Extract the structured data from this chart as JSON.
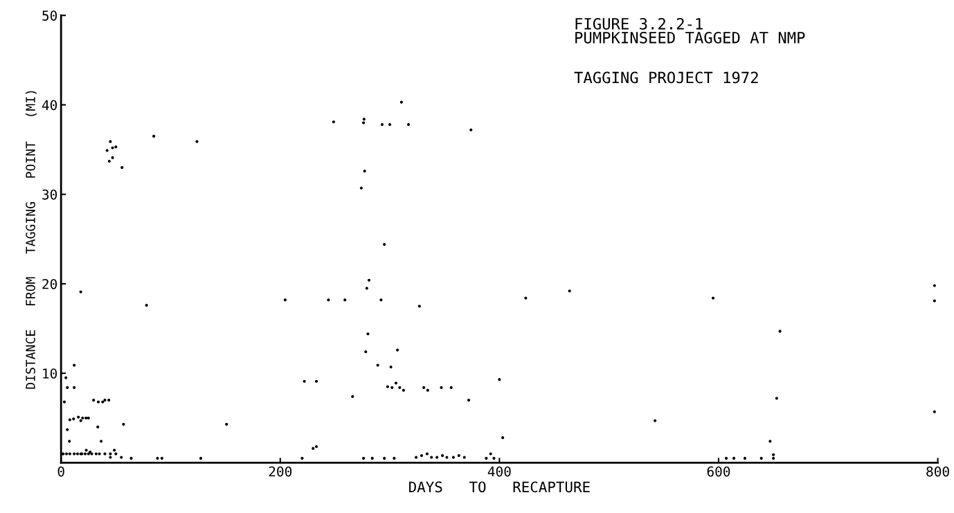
{
  "chart_data": {
    "type": "scatter",
    "title": "FIGURE 3.2.2-1\nPUMPKINSEED TAGGED AT NMP",
    "subtitle": "TAGGING PROJECT 1972",
    "xlabel": "DAYS   TO   RECAPTURE",
    "ylabel": "DISTANCE   FROM   TAGGING   POINT   (MI)",
    "xlim": [
      0,
      800
    ],
    "ylim": [
      0,
      50
    ],
    "xticks": [
      0,
      200,
      400,
      600,
      800
    ],
    "yticks": [
      10,
      20,
      30,
      40,
      50
    ],
    "grid": false,
    "marker": "circle",
    "series": [
      {
        "color": "#000000",
        "x": [
          1,
          2,
          5,
          8,
          12,
          15,
          18,
          22,
          25,
          28,
          32,
          35,
          40,
          45,
          50,
          7.6,
          5.7,
          8,
          3,
          5.7,
          4.4,
          12,
          12,
          11.4,
          15.8,
          18,
          19.6,
          22.7,
          25,
          18,
          19,
          23,
          26.5,
          29.7,
          34,
          38,
          40,
          43.6,
          33.5,
          36.6,
          48.6,
          45,
          55,
          64,
          42,
          47,
          45,
          44,
          47,
          50,
          55.6,
          57,
          78,
          84.6,
          88,
          92,
          127.5,
          124,
          151,
          204.5,
          222,
          233,
          220,
          230,
          233,
          248.7,
          244,
          259,
          266,
          276,
          276.5,
          274,
          277,
          278,
          279,
          281,
          280,
          276,
          284,
          289,
          292,
          295,
          293,
          300,
          295,
          304,
          301,
          298,
          302,
          305.6,
          309,
          312.5,
          307,
          310.6,
          317,
          324,
          329,
          334,
          338,
          343,
          348,
          352,
          358,
          363,
          368,
          327,
          331,
          334.6,
          347,
          356,
          372,
          374,
          388,
          392,
          395,
          400,
          403,
          424,
          464,
          542,
          595,
          607,
          614,
          624,
          639,
          647,
          650,
          650,
          653,
          656,
          797,
          797,
          797
        ],
        "values": [
          1,
          1,
          1,
          1,
          1,
          1,
          1,
          1,
          1,
          1,
          1,
          1,
          1,
          1,
          1,
          2.4,
          3.7,
          4.8,
          6.8,
          8.4,
          9.5,
          8.4,
          10.9,
          4.9,
          5.1,
          4.7,
          5,
          5,
          5,
          19.1,
          1,
          1.4,
          1.2,
          7,
          6.8,
          6.8,
          7,
          7,
          4,
          2.4,
          1.4,
          0.6,
          0.6,
          0.5,
          34.9,
          35.2,
          35.9,
          33.7,
          34.1,
          35.3,
          33,
          4.3,
          17.6,
          36.5,
          0.5,
          0.5,
          0.5,
          35.9,
          4.3,
          18.2,
          9.1,
          9.1,
          0.5,
          1.6,
          1.8,
          38.1,
          18.2,
          18.2,
          7.4,
          38,
          38.4,
          30.7,
          32.6,
          12.4,
          19.5,
          20.4,
          14.4,
          0.5,
          0.5,
          10.9,
          18.2,
          24.4,
          37.8,
          37.8,
          0.5,
          0.5,
          10.7,
          8.5,
          8.4,
          8.9,
          8.4,
          8.1,
          12.6,
          40.3,
          37.8,
          0.6,
          0.8,
          1,
          0.6,
          0.6,
          0.8,
          0.6,
          0.6,
          0.8,
          0.6,
          17.5,
          8.4,
          8.1,
          8.4,
          8.4,
          7,
          37.2,
          0.5,
          1,
          0.5,
          9.3,
          2.8,
          18.4,
          19.2,
          4.7,
          18.4,
          0.5,
          0.5,
          0.5,
          0.5,
          2.4,
          0.9,
          0.5,
          7.2,
          14.7,
          19.8,
          18.1,
          5.7
        ]
      }
    ]
  }
}
